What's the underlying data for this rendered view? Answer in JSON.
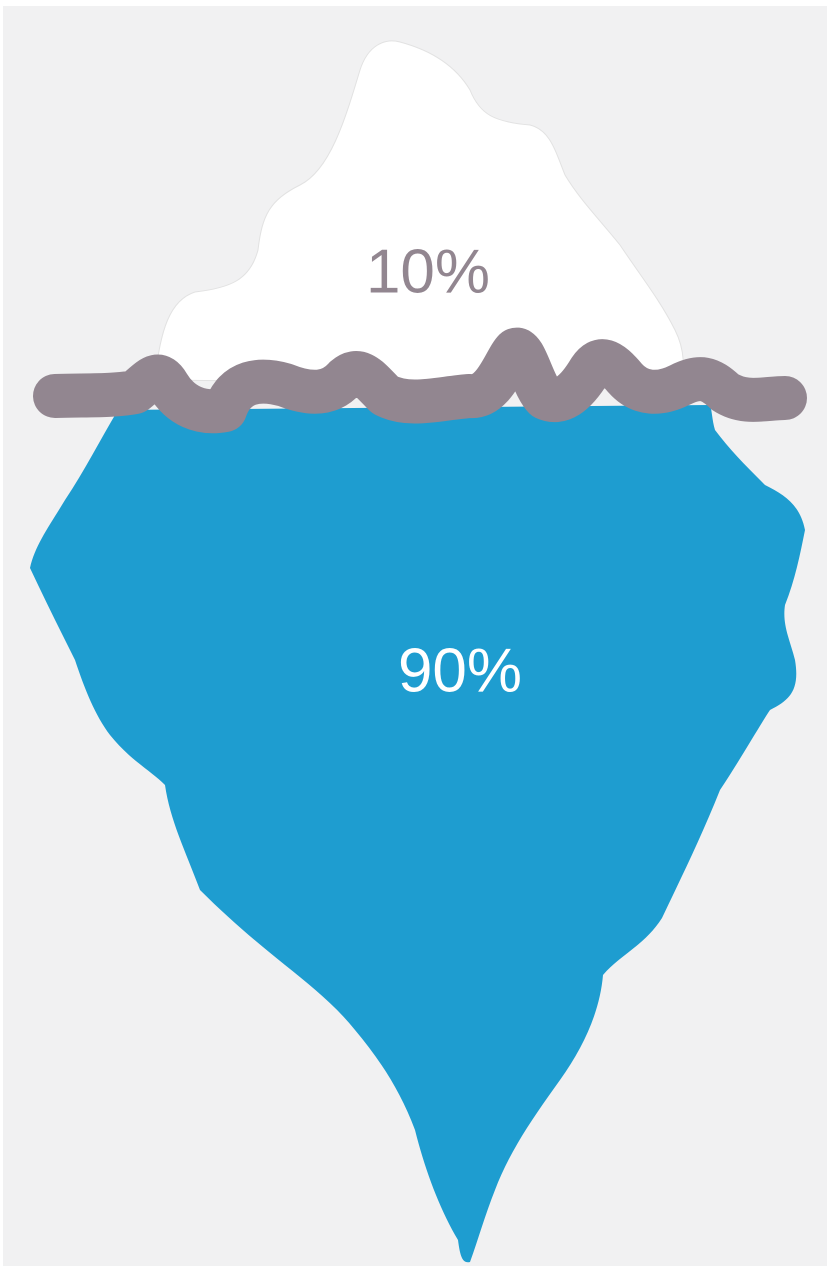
{
  "above_water": {
    "label": "10%"
  },
  "below_water": {
    "label": "90%"
  }
}
